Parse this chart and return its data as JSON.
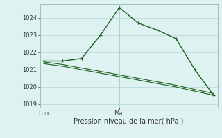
{
  "title": "",
  "xlabel": "Pression niveau de la mer( hPa )",
  "ylabel": "",
  "bg_color": "#dff2f2",
  "grid_color": "#b8dada",
  "line_color": "#1a5c1a",
  "ylim": [
    1018.8,
    1024.8
  ],
  "yticks": [
    1019,
    1020,
    1021,
    1022,
    1023,
    1024
  ],
  "vline_positions": [
    0,
    4
  ],
  "forecast_x": [
    0,
    1,
    2,
    3,
    4,
    5,
    6,
    7,
    8,
    9
  ],
  "forecast_y": [
    1021.5,
    1021.5,
    1021.65,
    1023.0,
    1024.6,
    1023.7,
    1023.3,
    1022.8,
    1021.0,
    1019.5
  ],
  "trend_x": [
    0,
    1,
    2,
    3,
    4,
    5,
    6,
    7,
    8,
    9
  ],
  "trend_y": [
    1021.45,
    1021.3,
    1021.1,
    1020.9,
    1020.7,
    1020.5,
    1020.3,
    1020.1,
    1019.85,
    1019.62
  ],
  "trend2_y": [
    1021.35,
    1021.2,
    1021.0,
    1020.8,
    1020.6,
    1020.4,
    1020.2,
    1020.0,
    1019.75,
    1019.52
  ],
  "xtick_labels_pos": [
    0,
    4
  ],
  "xtick_labels": [
    "Lun",
    "Mar"
  ]
}
